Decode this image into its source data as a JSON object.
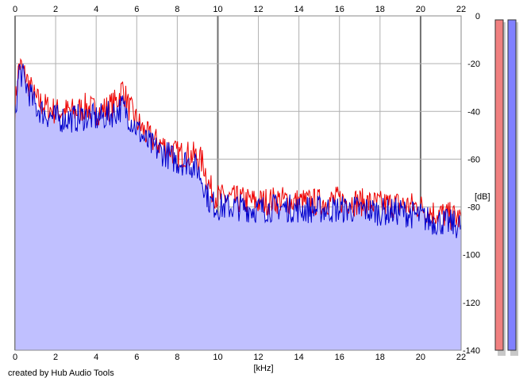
{
  "chart_data": {
    "type": "area",
    "xlabel": "[kHz]",
    "ylabel": "[dB]",
    "xlim": [
      0,
      22
    ],
    "ylim": [
      -140,
      0
    ],
    "x_ticks": [
      0,
      2,
      4,
      6,
      8,
      10,
      12,
      14,
      16,
      18,
      20,
      22
    ],
    "y_ticks": [
      0,
      -20,
      -40,
      -60,
      -80,
      -100,
      -120,
      -140
    ],
    "grid": true,
    "series": [
      {
        "color": "#ee0000",
        "x": [
          0,
          0.2,
          0.5,
          1,
          1.5,
          2,
          2.5,
          3,
          3.5,
          4,
          4.5,
          5,
          5.3,
          5.6,
          6,
          6.5,
          7,
          7.5,
          8,
          8.5,
          9,
          9.3,
          9.6,
          10,
          11,
          12,
          13,
          14,
          15,
          16,
          17,
          18,
          19,
          20,
          20.5,
          21,
          21.5,
          22
        ],
        "values": [
          -38,
          -20,
          -25,
          -35,
          -38,
          -40,
          -40,
          -40,
          -38,
          -40,
          -39,
          -36,
          -30,
          -38,
          -44,
          -50,
          -53,
          -55,
          -58,
          -58,
          -59,
          -62,
          -72,
          -76,
          -77,
          -78,
          -77,
          -78,
          -78,
          -77,
          -78,
          -79,
          -79,
          -80,
          -82,
          -83,
          -84,
          -85
        ]
      },
      {
        "color": "#0000cc",
        "x": [
          0,
          0.2,
          0.5,
          1,
          1.5,
          2,
          2.5,
          3,
          3.5,
          4,
          4.5,
          5,
          5.3,
          5.6,
          6,
          6.5,
          7,
          7.5,
          8,
          8.5,
          9,
          9.3,
          9.6,
          10,
          11,
          12,
          13,
          14,
          15,
          16,
          17,
          18,
          19,
          20,
          20.5,
          21,
          21.5,
          22
        ],
        "values": [
          -42,
          -22,
          -28,
          -38,
          -41,
          -43,
          -43,
          -43,
          -42,
          -43,
          -42,
          -40,
          -38,
          -42,
          -47,
          -53,
          -56,
          -58,
          -61,
          -61,
          -64,
          -70,
          -78,
          -80,
          -80,
          -81,
          -80,
          -81,
          -81,
          -81,
          -81,
          -82,
          -82,
          -84,
          -86,
          -86,
          -87,
          -88
        ]
      }
    ],
    "fill_color": "#c0c0ff",
    "credit": "created by Hub Audio Tools",
    "meters": [
      {
        "color": "#f08080",
        "value": -140
      },
      {
        "color": "#8080ff",
        "value": -140
      }
    ]
  }
}
